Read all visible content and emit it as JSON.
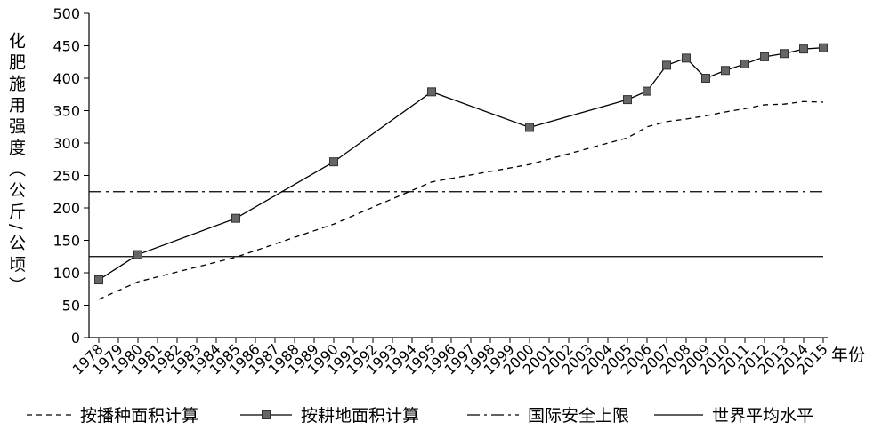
{
  "chart_data": {
    "type": "line",
    "ylabel": "化肥施用强度（公斤/公顷）",
    "xlabel": "年份",
    "xlim": [
      1977.5,
      2015.5
    ],
    "xticks": [
      1978,
      1979,
      1980,
      1981,
      1982,
      1983,
      1984,
      1985,
      1986,
      1987,
      1988,
      1989,
      1990,
      1991,
      1992,
      1993,
      1994,
      1995,
      1996,
      1997,
      1998,
      1999,
      2000,
      2001,
      2002,
      2003,
      2004,
      2005,
      2006,
      2007,
      2008,
      2009,
      2010,
      2011,
      2012,
      2013,
      2014,
      2015
    ],
    "ylim": [
      0,
      500
    ],
    "yticks": [
      0,
      50,
      100,
      150,
      200,
      250,
      300,
      350,
      400,
      450,
      500
    ],
    "series": [
      {
        "name": "按播种面积计算",
        "color": "#000000",
        "dash": "dashed",
        "marker": "none",
        "x": [
          1978,
          1980,
          1985,
          1990,
          1995,
          2000,
          2005,
          2006,
          2007,
          2008,
          2009,
          2010,
          2011,
          2012,
          2013,
          2014,
          2015
        ],
        "values": [
          59,
          86,
          124,
          175,
          240,
          267,
          308,
          325,
          333,
          337,
          342,
          348,
          353,
          359,
          360,
          364,
          363
        ]
      },
      {
        "name": "按耕地面积计算",
        "color": "#000000",
        "dash": "solid",
        "marker": "square",
        "x": [
          1978,
          1980,
          1985,
          1990,
          1995,
          2000,
          2005,
          2006,
          2007,
          2008,
          2009,
          2010,
          2011,
          2012,
          2013,
          2014,
          2015
        ],
        "values": [
          89,
          128,
          184,
          271,
          379,
          324,
          367,
          380,
          420,
          431,
          400,
          412,
          422,
          433,
          438,
          445,
          447
        ]
      }
    ],
    "reference_lines": [
      {
        "name": "国际安全上限",
        "value": 225,
        "color": "#000000",
        "dash": "dashdot"
      },
      {
        "name": "世界平均水平",
        "value": 125,
        "color": "#000000",
        "dash": "solid"
      }
    ]
  }
}
